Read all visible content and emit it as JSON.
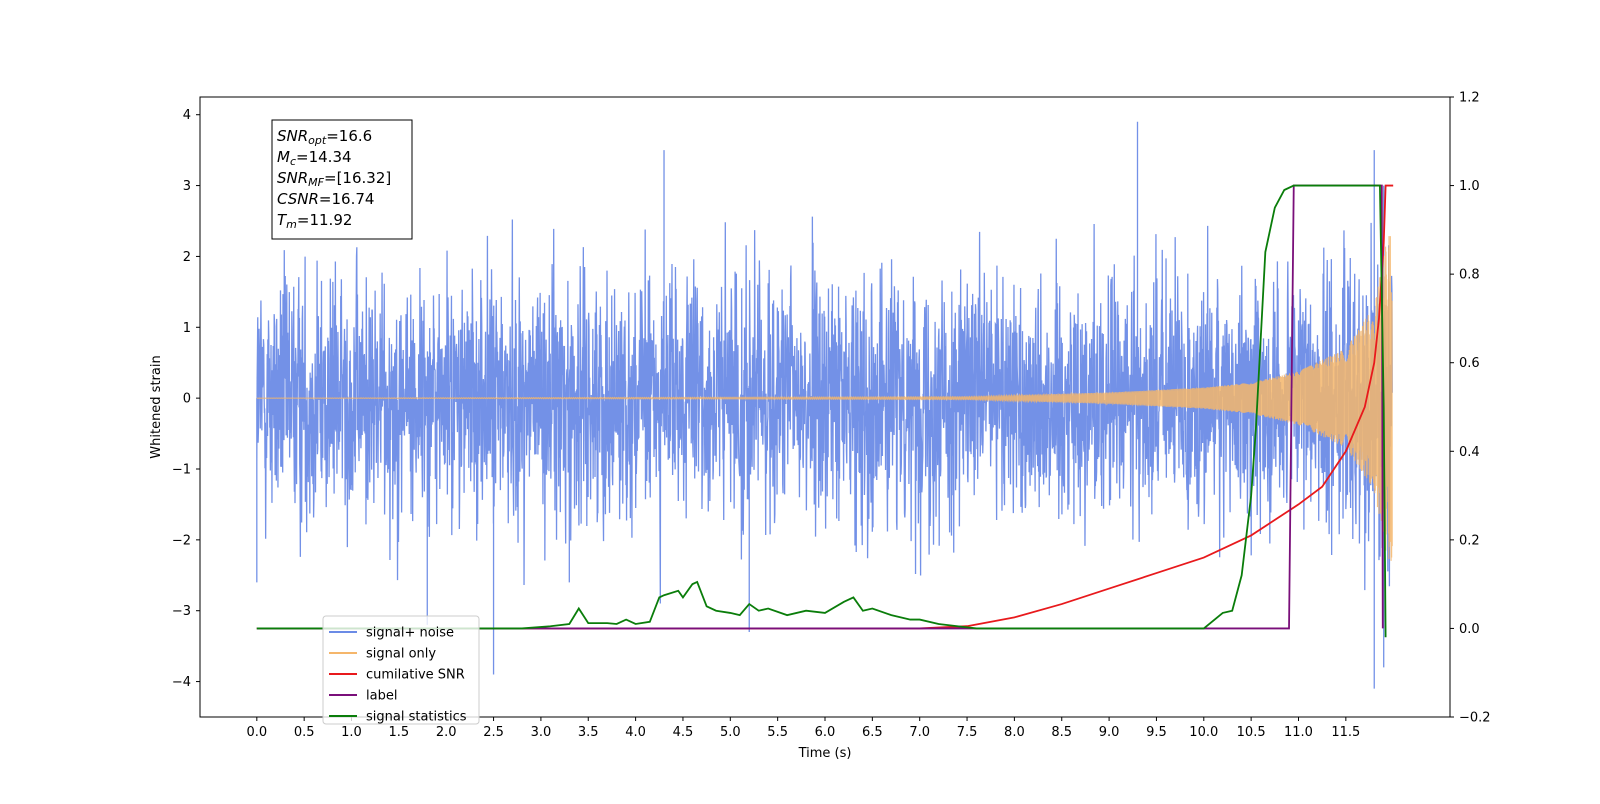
{
  "chart_data": {
    "type": "line",
    "xlabel": "Time (s)",
    "ylabel": "Whitened strain",
    "xlim": [
      -0.6,
      12.6
    ],
    "ylim": [
      -4.5,
      4.25
    ],
    "y2lim": [
      -0.2,
      1.2
    ],
    "x_ticks": [
      "0.0",
      "0.5",
      "1.0",
      "1.5",
      "2.0",
      "2.5",
      "3.0",
      "3.5",
      "4.0",
      "4.5",
      "5.0",
      "5.5",
      "6.0",
      "6.5",
      "7.0",
      "7.5",
      "8.0",
      "8.5",
      "9.0",
      "9.5",
      "10.0",
      "10.5",
      "11.0",
      "11.5"
    ],
    "y_ticks": [
      "−4",
      "−3",
      "−2",
      "−1",
      "0",
      "1",
      "2",
      "3",
      "4"
    ],
    "y2_ticks": [
      "−0.2",
      "0.0",
      "0.2",
      "0.4",
      "0.6",
      "0.8",
      "1.0",
      "1.2"
    ],
    "legend_location": "lower-left",
    "annotation": {
      "lines": [
        {
          "symbol": "SNR",
          "sub": "opt",
          "value": "=16.6"
        },
        {
          "symbol": "M",
          "sub": "c",
          "value": "=14.34"
        },
        {
          "symbol": "SNR",
          "sub": "MF",
          "value": "=[16.32]"
        },
        {
          "symbol": "CSNR",
          "sub": "",
          "value": "=16.74"
        },
        {
          "symbol": "T",
          "sub": "m",
          "value": "=11.92"
        }
      ]
    },
    "series": [
      {
        "name": "signal+ noise",
        "color": "#6b8be6",
        "axis": "left",
        "kind": "noise",
        "t_range": [
          0.0,
          11.99
        ],
        "envelope": [
          [
            0.0,
            2.0
          ],
          [
            11.0,
            2.0
          ],
          [
            11.9,
            2.6
          ]
        ],
        "notable_spikes": [
          [
            0.0,
            -2.6
          ],
          [
            1.8,
            -3.2
          ],
          [
            2.5,
            -3.9
          ],
          [
            3.3,
            -2.6
          ],
          [
            4.3,
            3.5
          ],
          [
            5.2,
            -3.3
          ],
          [
            9.3,
            3.9
          ],
          [
            11.8,
            3.5
          ],
          [
            11.8,
            -4.1
          ],
          [
            11.9,
            -3.8
          ]
        ]
      },
      {
        "name": "signal only",
        "color": "#f5b66b",
        "axis": "left",
        "kind": "chirp",
        "t_range": [
          0.0,
          11.99
        ],
        "amplitude": [
          [
            0.0,
            0.0
          ],
          [
            7.5,
            0.02
          ],
          [
            9.0,
            0.08
          ],
          [
            10.0,
            0.15
          ],
          [
            10.5,
            0.22
          ],
          [
            11.0,
            0.38
          ],
          [
            11.5,
            0.7
          ],
          [
            11.8,
            1.3
          ],
          [
            11.9,
            2.0
          ],
          [
            11.94,
            2.3
          ]
        ]
      },
      {
        "name": "cumilative SNR",
        "color": "#e8191c",
        "axis": "right",
        "x": [
          0.0,
          7.0,
          7.5,
          8.0,
          8.5,
          9.0,
          9.5,
          10.0,
          10.5,
          11.0,
          11.25,
          11.5,
          11.7,
          11.8,
          11.85,
          11.9,
          11.92,
          12.0
        ],
        "y": [
          0.0,
          0.0,
          0.005,
          0.025,
          0.055,
          0.09,
          0.125,
          0.16,
          0.21,
          0.28,
          0.32,
          0.4,
          0.5,
          0.6,
          0.7,
          0.87,
          1.0,
          1.0
        ]
      },
      {
        "name": "label",
        "color": "#7a0f7a",
        "axis": "right",
        "x": [
          0.0,
          10.9,
          10.95,
          11.88,
          11.89
        ],
        "y": [
          0.0,
          0.0,
          1.0,
          1.0,
          0.0
        ]
      },
      {
        "name": "signal statistics",
        "color": "#0a7d0a",
        "axis": "right",
        "x": [
          0.0,
          2.8,
          3.1,
          3.3,
          3.4,
          3.5,
          3.7,
          3.8,
          3.9,
          4.0,
          4.15,
          4.25,
          4.3,
          4.45,
          4.5,
          4.6,
          4.65,
          4.75,
          4.85,
          5.0,
          5.1,
          5.2,
          5.3,
          5.4,
          5.6,
          5.8,
          6.0,
          6.2,
          6.3,
          6.4,
          6.5,
          6.7,
          6.9,
          7.0,
          7.2,
          7.4,
          7.6,
          8.0,
          9.0,
          10.0,
          10.2,
          10.3,
          10.4,
          10.5,
          10.55,
          10.6,
          10.65,
          10.75,
          10.85,
          10.95,
          11.2,
          11.5,
          11.86,
          11.9,
          11.92
        ],
        "y": [
          0.0,
          0.0,
          0.005,
          0.01,
          0.045,
          0.012,
          0.012,
          0.01,
          0.02,
          0.01,
          0.015,
          0.07,
          0.075,
          0.085,
          0.07,
          0.1,
          0.105,
          0.05,
          0.04,
          0.035,
          0.03,
          0.055,
          0.04,
          0.045,
          0.03,
          0.04,
          0.035,
          0.06,
          0.07,
          0.04,
          0.045,
          0.03,
          0.02,
          0.02,
          0.01,
          0.005,
          0.0,
          0.0,
          0.0,
          0.0,
          0.035,
          0.04,
          0.12,
          0.3,
          0.45,
          0.65,
          0.85,
          0.95,
          0.99,
          1.0,
          1.0,
          1.0,
          1.0,
          0.5,
          -0.02
        ]
      }
    ]
  }
}
